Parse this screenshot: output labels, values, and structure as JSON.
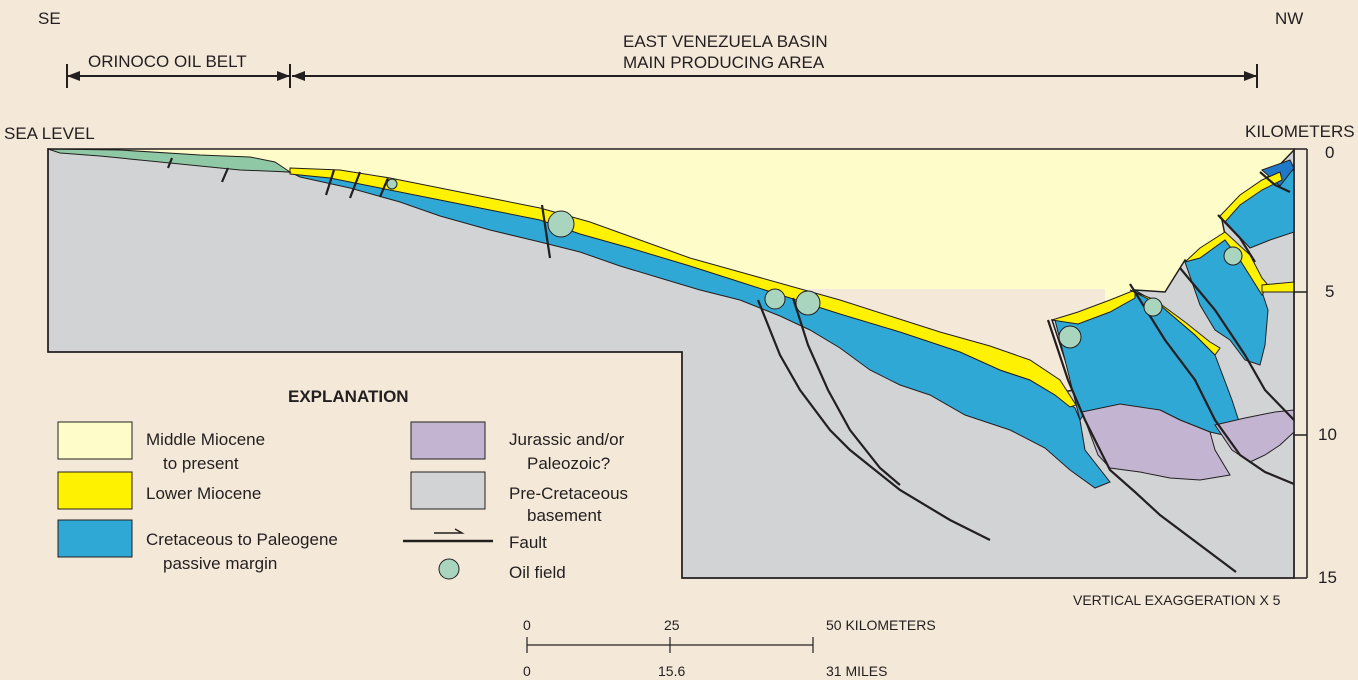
{
  "labels": {
    "se": "SE",
    "nw": "NW",
    "orinoco": "ORINOCO OIL BELT",
    "basin_line1": "EAST VENEZUELA BASIN",
    "basin_line2": "MAIN PRODUCING AREA",
    "sea_level": "SEA LEVEL",
    "kilometers": "KILOMETERS",
    "vertical_exaggeration": "VERTICAL EXAGGERATION X 5"
  },
  "depth_scale": {
    "unit": "KILOMETERS",
    "ticks": [
      "0",
      "5",
      "10",
      "15"
    ]
  },
  "explanation": {
    "title": "EXPLANATION",
    "items": [
      {
        "key": "middle-miocene",
        "line1": "Middle Miocene",
        "line2": "to present",
        "color": "#fefcc9"
      },
      {
        "key": "lower-miocene",
        "line1": "Lower Miocene",
        "line2": "",
        "color": "#fff200"
      },
      {
        "key": "cretaceous-paleogene",
        "line1": "Cretaceous to Paleogene",
        "line2": "passive margin",
        "color": "#2fa8d5"
      },
      {
        "key": "jurassic-paleozoic",
        "line1": "Jurassic and/or",
        "line2": "Paleozoic?",
        "color": "#c3b5d1"
      },
      {
        "key": "pre-cretaceous",
        "line1": "Pre-Cretaceous",
        "line2": "basement",
        "color": "#d1d3d4"
      }
    ],
    "fault_label": "Fault",
    "oil_field_label": "Oil field",
    "oil_field_color": "#a9d4bd",
    "orinoco_color": "#8fc8a4"
  },
  "scale_bar": {
    "km_ticks": [
      "0",
      "25",
      "50 KILOMETERS"
    ],
    "mile_ticks": [
      "0",
      "15.6",
      "31 MILES"
    ]
  }
}
